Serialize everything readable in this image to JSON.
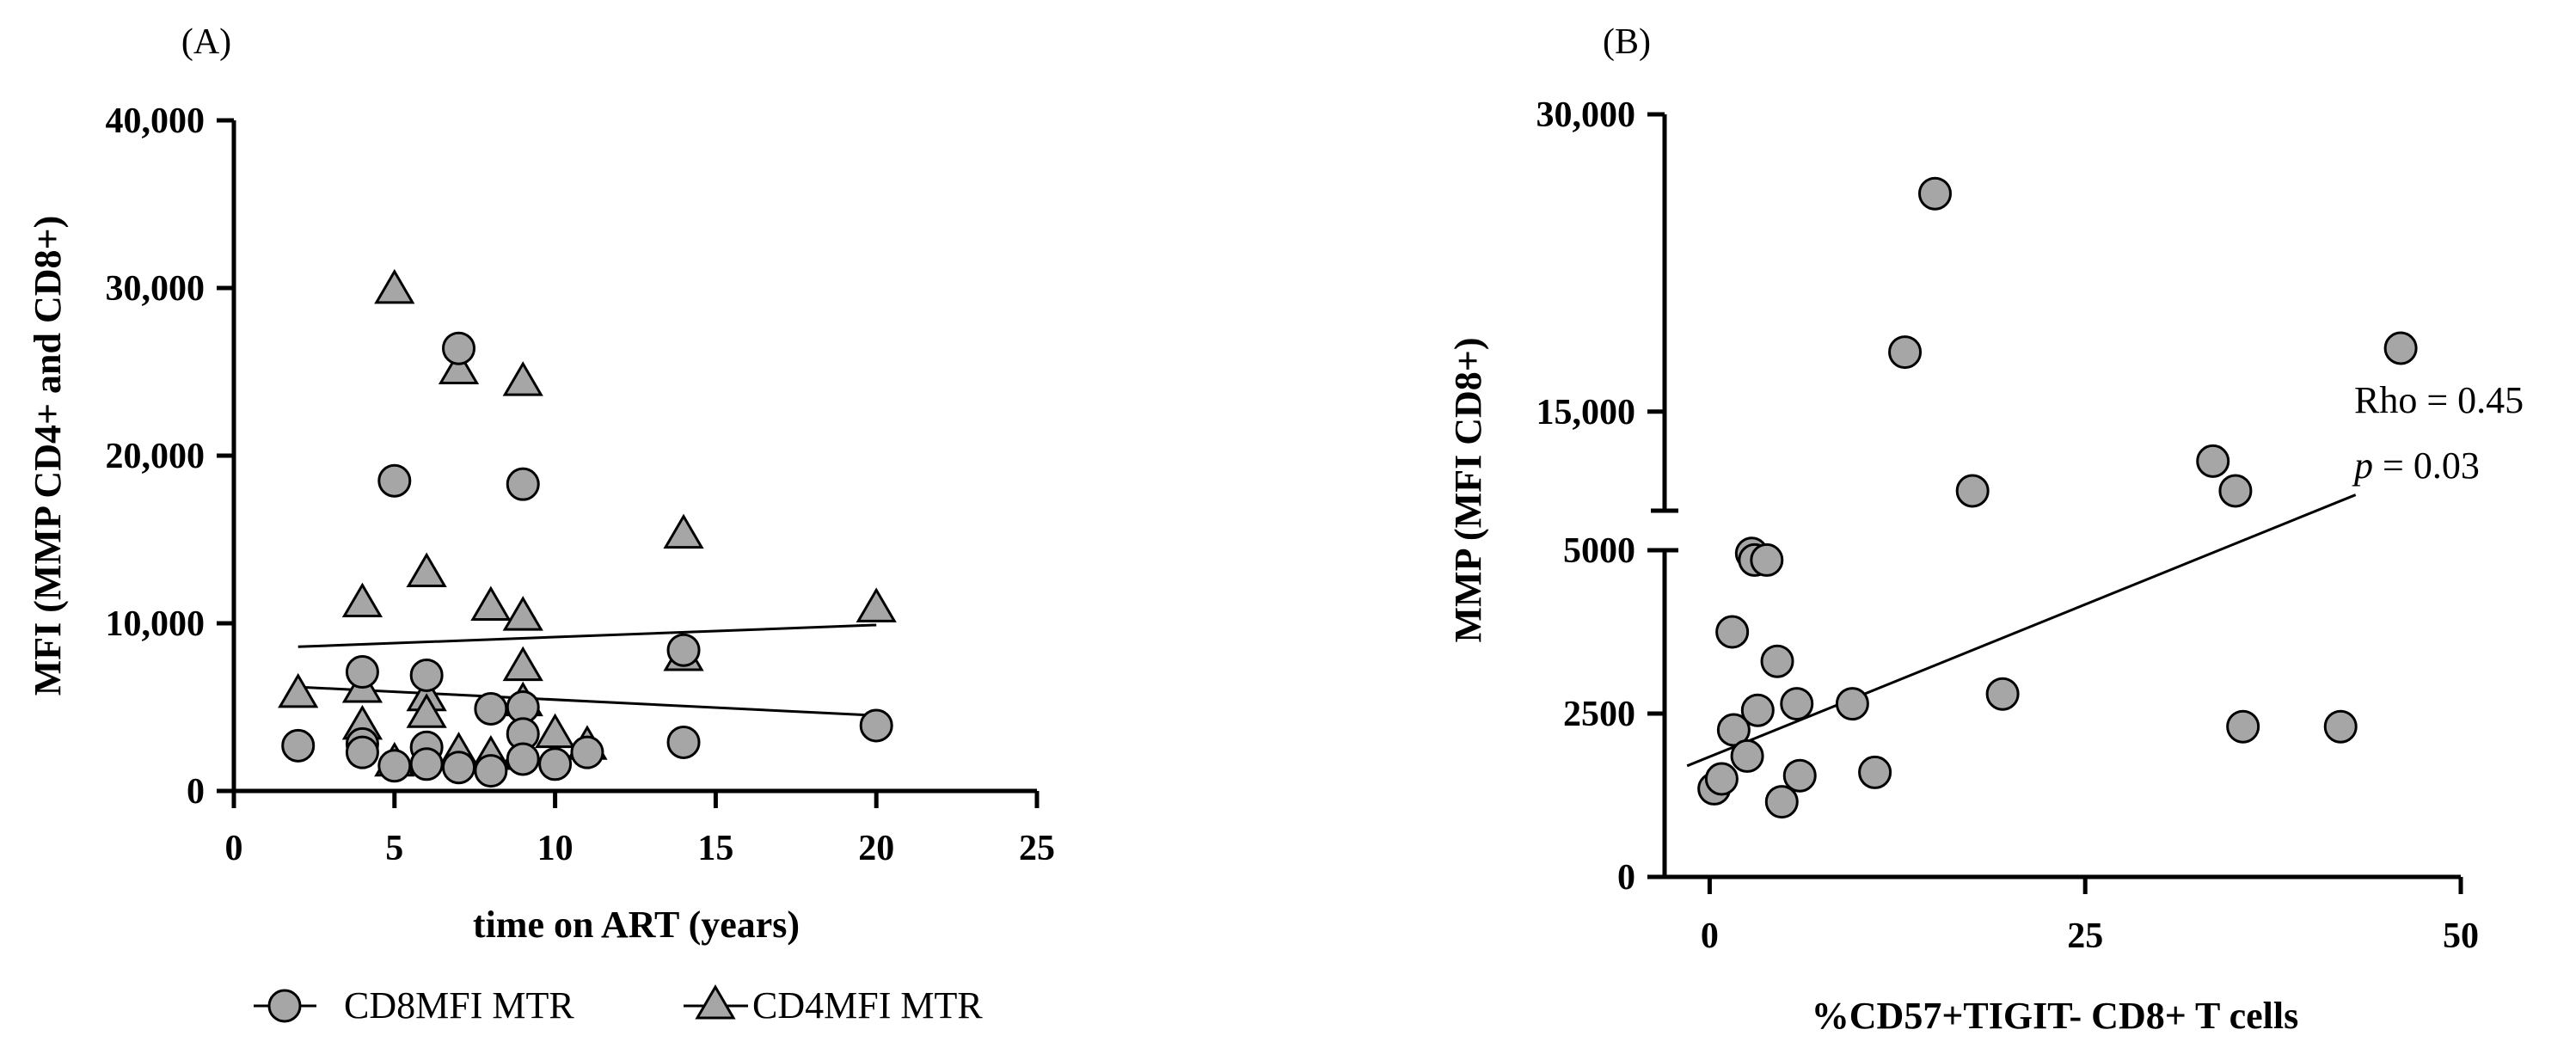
{
  "chart_data": [
    {
      "panel_label": "(A)",
      "type": "scatter",
      "xlabel": "time on ART (years)",
      "ylabel": "MFI (MMP CD4+ and CD8+)",
      "xlim": [
        0,
        25
      ],
      "ylim": [
        0,
        40000
      ],
      "x_ticks": [
        0,
        5,
        10,
        15,
        20,
        25
      ],
      "x_tick_labels": [
        "0",
        "5",
        "10",
        "15",
        "20",
        "25"
      ],
      "y_ticks": [
        0,
        10000,
        20000,
        30000,
        40000
      ],
      "y_tick_labels": [
        "0",
        "10,000",
        "20,000",
        "30,000",
        "40,000"
      ],
      "grid": false,
      "legend_position": "bottom",
      "series": [
        {
          "name": "CD8MFI MTR",
          "marker": "circle",
          "color": "#a6a6a6",
          "points": [
            [
              2,
              2700
            ],
            [
              4,
              7100
            ],
            [
              4,
              2800
            ],
            [
              4,
              2300
            ],
            [
              5,
              18500
            ],
            [
              5,
              1500
            ],
            [
              6,
              6900
            ],
            [
              6,
              2600
            ],
            [
              6,
              1600
            ],
            [
              7,
              26400
            ],
            [
              7,
              1400
            ],
            [
              8,
              4900
            ],
            [
              8,
              1200
            ],
            [
              9,
              18300
            ],
            [
              9,
              5000
            ],
            [
              9,
              3400
            ],
            [
              9,
              1900
            ],
            [
              10,
              1600
            ],
            [
              11,
              2300
            ],
            [
              14,
              8400
            ],
            [
              14,
              2900
            ],
            [
              20,
              3900
            ]
          ],
          "trend": {
            "x": [
              2,
              20
            ],
            "y": [
              6200,
              4500
            ]
          }
        },
        {
          "name": "CD4MFI MTR",
          "marker": "triangle",
          "color": "#a6a6a6",
          "points": [
            [
              2,
              5700
            ],
            [
              4,
              11100
            ],
            [
              4,
              6000
            ],
            [
              4,
              3800
            ],
            [
              5,
              29800
            ],
            [
              5,
              1600
            ],
            [
              6,
              12900
            ],
            [
              6,
              5500
            ],
            [
              6,
              4500
            ],
            [
              7,
              25000
            ],
            [
              7,
              2200
            ],
            [
              8,
              10900
            ],
            [
              8,
              2000
            ],
            [
              9,
              24300
            ],
            [
              9,
              10300
            ],
            [
              9,
              7300
            ],
            [
              9,
              5200
            ],
            [
              9,
              2300
            ],
            [
              10,
              3300
            ],
            [
              11,
              2600
            ],
            [
              14,
              15200
            ],
            [
              14,
              7900
            ],
            [
              20,
              10800
            ]
          ],
          "trend": {
            "x": [
              2,
              20
            ],
            "y": [
              8600,
              9900
            ]
          }
        }
      ]
    },
    {
      "panel_label": "(B)",
      "type": "scatter",
      "xlabel": "%CD57+TIGIT- CD8+ T cells",
      "ylabel": "MMP (MFI CD8+)",
      "xlim": [
        -3,
        50
      ],
      "ylim": [
        0,
        30000
      ],
      "y_axis_break": [
        5000,
        10000
      ],
      "x_ticks": [
        0,
        25,
        50
      ],
      "x_tick_labels": [
        "0",
        "25",
        "50"
      ],
      "y_ticks": [
        0,
        2500,
        5000,
        15000,
        30000
      ],
      "y_tick_labels": [
        "0",
        "2500",
        "5000",
        "15,000",
        "30,000"
      ],
      "grid": false,
      "annotation": {
        "rho": "Rho = 0.45",
        "p_symbol": "p",
        "p_value": " = 0.03"
      },
      "series": [
        {
          "marker": "circle",
          "color": "#a6a6a6",
          "points": [
            [
              0.3,
              1350
            ],
            [
              0.8,
              1500
            ],
            [
              1.5,
              3750
            ],
            [
              1.6,
              2250
            ],
            [
              2.5,
              1850
            ],
            [
              2.8,
              4950
            ],
            [
              3.0,
              4850
            ],
            [
              3.2,
              2550
            ],
            [
              3.8,
              4850
            ],
            [
              4.5,
              3300
            ],
            [
              4.8,
              1150
            ],
            [
              5.8,
              2650
            ],
            [
              6.0,
              1550
            ],
            [
              9.5,
              2650
            ],
            [
              11.0,
              1600
            ],
            [
              13.0,
              18000
            ],
            [
              15.0,
              26000
            ],
            [
              17.5,
              11000
            ],
            [
              19.5,
              2800
            ],
            [
              33.5,
              12500
            ],
            [
              35.0,
              11000
            ],
            [
              35.5,
              2300
            ],
            [
              42.0,
              2300
            ],
            [
              46.0,
              18200
            ]
          ],
          "trend": {
            "x": [
              -1.5,
              43
            ],
            "y": [
              1700,
              10800
            ]
          }
        }
      ]
    }
  ]
}
